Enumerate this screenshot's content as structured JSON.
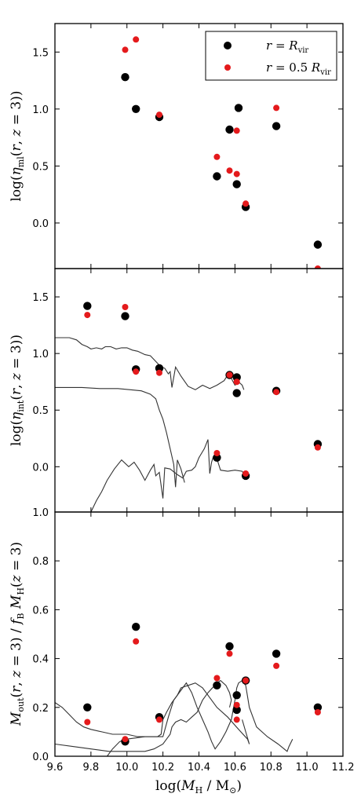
{
  "chart_data": [
    {
      "type": "scatter",
      "ylabel": "log(η_ml(r, z = 3))",
      "xlim": [
        9.6,
        11.2
      ],
      "ylim": [
        -0.4,
        1.75
      ],
      "yticks": [
        "1.5",
        "1.0",
        "0.5",
        "0.0"
      ],
      "ytick_values": [
        1.5,
        1.0,
        0.5,
        0.0
      ],
      "legend": {
        "placement": "top-right",
        "entries": [
          {
            "label": "r = R_vir",
            "color": "#000000"
          },
          {
            "label": "r = 0.5 R_vir",
            "color": "#e41a1c"
          }
        ]
      },
      "series": [
        {
          "name": "r = R_vir",
          "color": "#000000",
          "x": [
            9.99,
            10.05,
            10.18,
            10.5,
            10.57,
            10.61,
            10.62,
            10.66,
            10.83,
            11.06
          ],
          "y": [
            1.28,
            1.0,
            0.93,
            0.41,
            0.82,
            0.34,
            1.01,
            0.14,
            0.85,
            -0.19
          ]
        },
        {
          "name": "r = 0.5 R_vir",
          "color": "#e41a1c",
          "x": [
            9.99,
            10.05,
            10.18,
            10.5,
            10.57,
            10.61,
            10.61,
            10.66,
            10.83,
            11.06
          ],
          "y": [
            1.52,
            1.61,
            0.95,
            0.58,
            0.46,
            0.81,
            0.43,
            0.17,
            1.01,
            -0.4
          ]
        }
      ]
    },
    {
      "type": "scatter",
      "ylabel": "log(η_int(r, z = 3))",
      "xlim": [
        9.6,
        11.2
      ],
      "ylim": [
        -0.4,
        1.75
      ],
      "yticks": [
        "1.5",
        "1.0",
        "0.5",
        "0.0"
      ],
      "ytick_values": [
        1.5,
        1.0,
        0.5,
        0.0
      ],
      "series": [
        {
          "name": "",
          "color": "#000000",
          "x": [
            9.78,
            9.99,
            10.05,
            10.18,
            10.5,
            10.57,
            10.61,
            10.61,
            10.66,
            10.83,
            11.06
          ],
          "y": [
            1.42,
            1.33,
            0.86,
            0.87,
            0.08,
            0.81,
            0.79,
            0.65,
            -0.08,
            0.67,
            0.2
          ]
        },
        {
          "name": "",
          "color": "#e41a1c",
          "x": [
            9.78,
            9.99,
            10.05,
            10.18,
            10.5,
            10.57,
            10.61,
            10.61,
            10.66,
            10.83,
            11.06
          ],
          "y": [
            1.34,
            1.41,
            0.84,
            0.83,
            0.12,
            0.81,
            0.75,
            0.75,
            -0.06,
            0.66,
            0.17
          ]
        }
      ],
      "lines": [
        [
          [
            9.6,
            1.14
          ],
          [
            9.68,
            1.14
          ],
          [
            9.72,
            1.12
          ],
          [
            9.75,
            1.08
          ],
          [
            9.78,
            1.06
          ],
          [
            9.8,
            1.04
          ],
          [
            9.83,
            1.05
          ],
          [
            9.86,
            1.04
          ],
          [
            9.88,
            1.06
          ],
          [
            9.91,
            1.06
          ],
          [
            9.94,
            1.04
          ],
          [
            9.97,
            1.05
          ],
          [
            10.0,
            1.05
          ],
          [
            10.03,
            1.03
          ],
          [
            10.06,
            1.02
          ],
          [
            10.1,
            0.99
          ],
          [
            10.13,
            0.98
          ],
          [
            10.16,
            0.93
          ],
          [
            10.19,
            0.88
          ],
          [
            10.21,
            0.87
          ],
          [
            10.23,
            0.82
          ],
          [
            10.24,
            0.84
          ],
          [
            10.25,
            0.7
          ],
          [
            10.27,
            0.88
          ],
          [
            10.3,
            0.8
          ],
          [
            10.34,
            0.71
          ],
          [
            10.38,
            0.68
          ],
          [
            10.42,
            0.72
          ],
          [
            10.46,
            0.69
          ],
          [
            10.5,
            0.72
          ],
          [
            10.54,
            0.76
          ],
          [
            10.56,
            0.81
          ],
          [
            10.58,
            0.78
          ],
          [
            10.6,
            0.72
          ],
          [
            10.62,
            0.75
          ],
          [
            10.64,
            0.72
          ],
          [
            10.65,
            0.68
          ]
        ],
        [
          [
            9.6,
            0.7
          ],
          [
            9.75,
            0.7
          ],
          [
            9.85,
            0.69
          ],
          [
            9.95,
            0.69
          ],
          [
            10.02,
            0.68
          ],
          [
            10.08,
            0.67
          ],
          [
            10.13,
            0.64
          ],
          [
            10.16,
            0.6
          ],
          [
            10.18,
            0.5
          ],
          [
            10.2,
            0.42
          ],
          [
            10.22,
            0.3
          ],
          [
            10.24,
            0.16
          ],
          [
            10.26,
            0.02
          ],
          [
            10.27,
            -0.18
          ],
          [
            10.28,
            0.06
          ],
          [
            10.3,
            -0.02
          ],
          [
            10.32,
            -0.14
          ]
        ],
        [
          [
            9.8,
            -0.4
          ],
          [
            9.83,
            -0.3
          ],
          [
            9.86,
            -0.22
          ],
          [
            9.89,
            -0.12
          ],
          [
            9.93,
            -0.02
          ],
          [
            9.97,
            0.06
          ],
          [
            10.01,
            0.0
          ],
          [
            10.04,
            0.04
          ],
          [
            10.07,
            -0.03
          ],
          [
            10.1,
            -0.12
          ],
          [
            10.13,
            -0.03
          ],
          [
            10.15,
            0.02
          ],
          [
            10.16,
            -0.08
          ],
          [
            10.18,
            -0.05
          ],
          [
            10.2,
            -0.28
          ],
          [
            10.21,
            -0.01
          ],
          [
            10.24,
            -0.02
          ],
          [
            10.28,
            -0.07
          ],
          [
            10.31,
            -0.1
          ],
          [
            10.33,
            -0.04
          ],
          [
            10.36,
            -0.03
          ],
          [
            10.38,
            0.0
          ],
          [
            10.4,
            0.08
          ],
          [
            10.43,
            0.16
          ],
          [
            10.45,
            0.24
          ],
          [
            10.46,
            -0.06
          ],
          [
            10.47,
            0.04
          ],
          [
            10.48,
            0.09
          ],
          [
            10.49,
            0.1
          ],
          [
            10.5,
            0.07
          ],
          [
            10.52,
            -0.03
          ],
          [
            10.56,
            -0.04
          ],
          [
            10.6,
            -0.03
          ],
          [
            10.64,
            -0.04
          ],
          [
            10.66,
            -0.1
          ],
          [
            10.67,
            -0.04
          ]
        ]
      ]
    },
    {
      "type": "scatter",
      "ylabel": "M_out(r, z = 3) / f_B M_H(z = 3)",
      "xlabel": "log(M_H / M_⊙)",
      "xlim": [
        9.6,
        11.2
      ],
      "ylim": [
        0.0,
        1.0
      ],
      "yticks": [
        "1.0",
        "0.8",
        "0.6",
        "0.4",
        "0.2",
        "0.0"
      ],
      "ytick_values": [
        1.0,
        0.8,
        0.6,
        0.4,
        0.2,
        0.0
      ],
      "xticks": [
        "9.6",
        "9.8",
        "10.0",
        "10.2",
        "10.4",
        "10.6",
        "10.8",
        "11.0",
        "11.2"
      ],
      "xtick_values": [
        9.6,
        9.8,
        10.0,
        10.2,
        10.4,
        10.6,
        10.8,
        11.0,
        11.2
      ],
      "series": [
        {
          "name": "",
          "color": "#000000",
          "x": [
            9.78,
            9.99,
            10.05,
            10.18,
            10.5,
            10.57,
            10.61,
            10.61,
            10.66,
            10.83,
            11.06
          ],
          "y": [
            0.2,
            0.06,
            0.53,
            0.16,
            0.29,
            0.45,
            0.19,
            0.25,
            0.31,
            0.42,
            0.2
          ]
        },
        {
          "name": "",
          "color": "#e41a1c",
          "x": [
            9.78,
            9.99,
            10.05,
            10.18,
            10.5,
            10.57,
            10.61,
            10.61,
            10.66,
            10.83,
            11.06
          ],
          "y": [
            0.14,
            0.07,
            0.47,
            0.15,
            0.32,
            0.42,
            0.21,
            0.15,
            0.31,
            0.37,
            0.18
          ]
        }
      ],
      "lines": [
        [
          [
            9.6,
            0.22
          ],
          [
            9.64,
            0.2
          ],
          [
            9.68,
            0.17
          ],
          [
            9.72,
            0.14
          ],
          [
            9.76,
            0.12
          ],
          [
            9.8,
            0.11
          ],
          [
            9.86,
            0.1
          ],
          [
            9.92,
            0.09
          ],
          [
            10.0,
            0.09
          ],
          [
            10.06,
            0.08
          ],
          [
            10.12,
            0.08
          ],
          [
            10.17,
            0.08
          ],
          [
            10.19,
            0.09
          ],
          [
            10.2,
            0.15
          ],
          [
            10.22,
            0.18
          ],
          [
            10.25,
            0.22
          ],
          [
            10.28,
            0.25
          ],
          [
            10.3,
            0.28
          ],
          [
            10.34,
            0.29
          ],
          [
            10.38,
            0.3
          ],
          [
            10.42,
            0.28
          ],
          [
            10.46,
            0.24
          ],
          [
            10.5,
            0.2
          ],
          [
            10.56,
            0.16
          ],
          [
            10.62,
            0.11
          ],
          [
            10.67,
            0.07
          ],
          [
            10.68,
            0.05
          ],
          [
            10.66,
            0.1
          ],
          [
            10.64,
            0.15
          ]
        ],
        [
          [
            9.6,
            0.05
          ],
          [
            9.7,
            0.04
          ],
          [
            9.8,
            0.03
          ],
          [
            9.9,
            0.02
          ],
          [
            10.0,
            0.02
          ],
          [
            10.1,
            0.02
          ],
          [
            10.15,
            0.03
          ],
          [
            10.2,
            0.05
          ],
          [
            10.22,
            0.07
          ],
          [
            10.24,
            0.09
          ],
          [
            10.25,
            0.12
          ],
          [
            10.27,
            0.14
          ],
          [
            10.3,
            0.15
          ],
          [
            10.33,
            0.14
          ],
          [
            10.36,
            0.16
          ],
          [
            10.39,
            0.18
          ],
          [
            10.42,
            0.23
          ],
          [
            10.45,
            0.26
          ],
          [
            10.5,
            0.3
          ],
          [
            10.52,
            0.31
          ],
          [
            10.55,
            0.29
          ],
          [
            10.57,
            0.26
          ],
          [
            10.58,
            0.23
          ],
          [
            10.57,
            0.2
          ]
        ],
        [
          [
            9.89,
            0.0
          ],
          [
            9.92,
            0.03
          ],
          [
            9.96,
            0.06
          ],
          [
            10.0,
            0.07
          ],
          [
            10.1,
            0.08
          ],
          [
            10.2,
            0.08
          ],
          [
            10.23,
            0.16
          ],
          [
            10.26,
            0.23
          ],
          [
            10.3,
            0.27
          ],
          [
            10.33,
            0.3
          ],
          [
            10.36,
            0.26
          ],
          [
            10.39,
            0.2
          ],
          [
            10.42,
            0.15
          ],
          [
            10.45,
            0.1
          ],
          [
            10.47,
            0.06
          ],
          [
            10.49,
            0.03
          ],
          [
            10.52,
            0.06
          ],
          [
            10.55,
            0.1
          ],
          [
            10.58,
            0.15
          ],
          [
            10.6,
            0.23
          ],
          [
            10.61,
            0.28
          ],
          [
            10.62,
            0.3
          ],
          [
            10.64,
            0.31
          ],
          [
            10.66,
            0.29
          ],
          [
            10.68,
            0.2
          ],
          [
            10.72,
            0.12
          ],
          [
            10.78,
            0.08
          ],
          [
            10.84,
            0.05
          ],
          [
            10.89,
            0.02
          ],
          [
            10.9,
            0.04
          ],
          [
            10.92,
            0.07
          ]
        ]
      ]
    }
  ]
}
